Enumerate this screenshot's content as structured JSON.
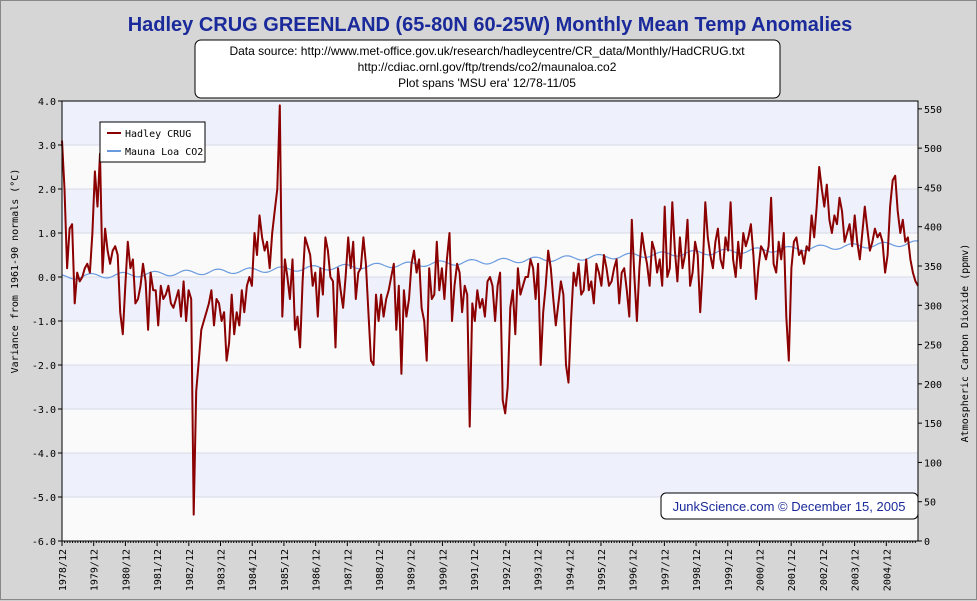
{
  "chart_data": {
    "type": "line",
    "title": "Hadley CRUG GREENLAND (65-80N 60-25W) Monthly Mean Temp Anomalies",
    "source_lines": [
      "Data source: http://www.met-office.gov.uk/research/hadleycentre/CR_data/Monthly/HadCRUG.txt",
      "http://cdiac.ornl.gov/ftp/trends/co2/maunaloa.co2",
      "Plot spans 'MSU era' 12/78-11/05"
    ],
    "credit": "JunkScience.com © December 15, 2005",
    "ylabel": "Variance from 1961-90 normals (°C)",
    "y2label": "Atmospheric Carbon Dioxide (ppmv)",
    "ylim": [
      -6,
      4
    ],
    "y2lim": [
      0,
      560
    ],
    "y_ticks": [
      "4.0",
      "3.0",
      "2.0",
      "1.0",
      "0.0",
      "-1.0",
      "-2.0",
      "-3.0",
      "-4.0",
      "-5.0",
      "-6.0"
    ],
    "y2_ticks": [
      "550",
      "500",
      "450",
      "400",
      "350",
      "300",
      "250",
      "200",
      "150",
      "100",
      "50",
      "0"
    ],
    "x_ticks": [
      "1978/12",
      "1979/12",
      "1980/12",
      "1981/12",
      "1982/12",
      "1983/12",
      "1984/12",
      "1985/12",
      "1986/12",
      "1987/12",
      "1988/12",
      "1989/12",
      "1990/12",
      "1991/12",
      "1992/12",
      "1993/12",
      "1994/12",
      "1995/12",
      "1996/12",
      "1997/12",
      "1998/12",
      "1999/12",
      "2000/12",
      "2001/12",
      "2002/12",
      "2003/12",
      "2004/12"
    ],
    "grid": true,
    "legend_position": "top-left",
    "colors": {
      "temp": "#8b0000",
      "co2": "#6a9be0",
      "title": "#1a2a9a"
    },
    "series": [
      {
        "name": "Hadley CRUG",
        "axis": "left",
        "sampling": "approximately monthly, 12/1978 to 11/2005",
        "values": [
          3.1,
          2.0,
          0.2,
          1.1,
          1.2,
          -0.6,
          0.1,
          -0.1,
          0.0,
          0.2,
          0.3,
          0.1,
          1.0,
          2.4,
          1.6,
          2.8,
          0.1,
          1.1,
          0.6,
          0.3,
          0.6,
          0.7,
          0.5,
          -0.8,
          -1.3,
          -0.2,
          0.8,
          0.2,
          0.4,
          -0.6,
          -0.5,
          -0.2,
          0.3,
          -0.1,
          -1.2,
          0.1,
          -0.3,
          -0.3,
          -1.1,
          -0.2,
          -0.5,
          -0.4,
          -0.2,
          -0.6,
          -0.7,
          -0.5,
          -0.3,
          -0.9,
          -0.1,
          -1.0,
          -0.3,
          -0.5,
          -5.4,
          -2.6,
          -1.9,
          -1.2,
          -1.0,
          -0.8,
          -0.6,
          -0.3,
          -1.1,
          -0.5,
          -0.6,
          -1.0,
          -0.8,
          -1.9,
          -1.5,
          -0.4,
          -1.3,
          -0.8,
          -1.1,
          -0.3,
          -0.8,
          -0.2,
          0.0,
          -0.2,
          1.0,
          0.5,
          1.4,
          0.9,
          0.6,
          0.8,
          0.2,
          1.0,
          1.5,
          2.0,
          3.9,
          -0.9,
          0.4,
          0.0,
          -0.5,
          0.4,
          -1.2,
          -0.9,
          -1.6,
          -0.1,
          0.9,
          0.7,
          0.5,
          -0.2,
          0.1,
          -0.9,
          0.2,
          -0.4,
          0.9,
          0.6,
          0.0,
          -0.1,
          -1.6,
          0.2,
          -0.3,
          -0.7,
          0.0,
          0.9,
          0.2,
          0.8,
          -0.5,
          0.1,
          0.2,
          0.9,
          0.3,
          -0.8,
          -1.9,
          -2.0,
          -0.4,
          -1.0,
          -0.4,
          -0.9,
          -0.5,
          -0.3,
          0.0,
          0.3,
          -1.2,
          -0.2,
          -2.2,
          -0.3,
          -0.9,
          -0.5,
          0.3,
          0.6,
          0.1,
          0.4,
          -0.7,
          -1.0,
          -1.9,
          0.2,
          -0.5,
          -0.4,
          0.8,
          -0.3,
          0.2,
          -0.5,
          0.4,
          1.0,
          -1.0,
          -0.2,
          0.3,
          0.1,
          -0.8,
          -0.2,
          -0.4,
          -3.4,
          -0.6,
          -1.0,
          -0.3,
          -0.7,
          -0.5,
          -0.9,
          -0.1,
          0.0,
          -0.2,
          -1.0,
          -0.2,
          0.1,
          -2.8,
          -3.1,
          -2.5,
          -0.7,
          -0.3,
          -1.3,
          0.2,
          -0.4,
          -0.2,
          0.0,
          0.0,
          0.4,
          0.2,
          -0.5,
          0.3,
          -2.0,
          -0.8,
          -0.2,
          0.6,
          0.2,
          -0.5,
          -1.1,
          -0.6,
          -0.1,
          -0.4,
          -2.0,
          -2.4,
          -1.0,
          0.1,
          -0.2,
          0.3,
          -0.4,
          -0.3,
          0.4,
          -0.3,
          -0.1,
          -0.6,
          0.3,
          0.1,
          -0.2,
          0.5,
          0.2,
          -0.2,
          -0.1,
          0.2,
          0.4,
          -0.6,
          0.1,
          0.2,
          -0.3,
          -0.9,
          1.3,
          0.0,
          -1.0,
          0.2,
          1.0,
          0.6,
          0.3,
          -0.2,
          0.8,
          0.6,
          0.1,
          0.4,
          -0.2,
          1.6,
          0.0,
          0.2,
          1.7,
          0.6,
          -0.1,
          0.9,
          0.2,
          0.5,
          1.3,
          -0.2,
          0.1,
          0.8,
          0.5,
          -0.8,
          0.2,
          1.7,
          0.9,
          0.5,
          0.2,
          0.8,
          1.1,
          0.4,
          0.2,
          0.9,
          0.6,
          1.7,
          0.4,
          0.0,
          0.8,
          0.2,
          1.0,
          0.7,
          0.9,
          1.2,
          0.5,
          -0.5,
          0.2,
          0.7,
          0.6,
          0.4,
          0.7,
          1.8,
          0.3,
          0.1,
          0.8,
          0.4,
          1.0,
          -0.9,
          -1.9,
          0.2,
          0.8,
          0.9,
          0.5,
          0.6,
          0.3,
          0.7,
          0.6,
          1.4,
          0.9,
          1.6,
          2.5,
          2.0,
          1.6,
          2.1,
          1.3,
          1.0,
          1.4,
          1.2,
          1.8,
          1.5,
          0.8,
          1.0,
          1.2,
          0.7,
          1.4,
          0.8,
          0.4,
          1.0,
          1.6,
          1.1,
          0.6,
          0.8,
          1.1,
          0.9,
          1.0,
          0.8,
          0.1,
          0.5,
          1.6,
          2.2,
          2.3,
          1.5,
          1.0,
          1.3,
          0.8,
          0.9,
          0.4,
          0.1,
          -0.1,
          -0.2
        ]
      },
      {
        "name": "Mauna Loa CO2",
        "axis": "right",
        "sampling": "approximately monthly, 12/1978 to 11/2005",
        "start_ppmv": 336,
        "end_ppmv": 379,
        "seasonal_amplitude_ppmv": 3.2
      }
    ]
  }
}
